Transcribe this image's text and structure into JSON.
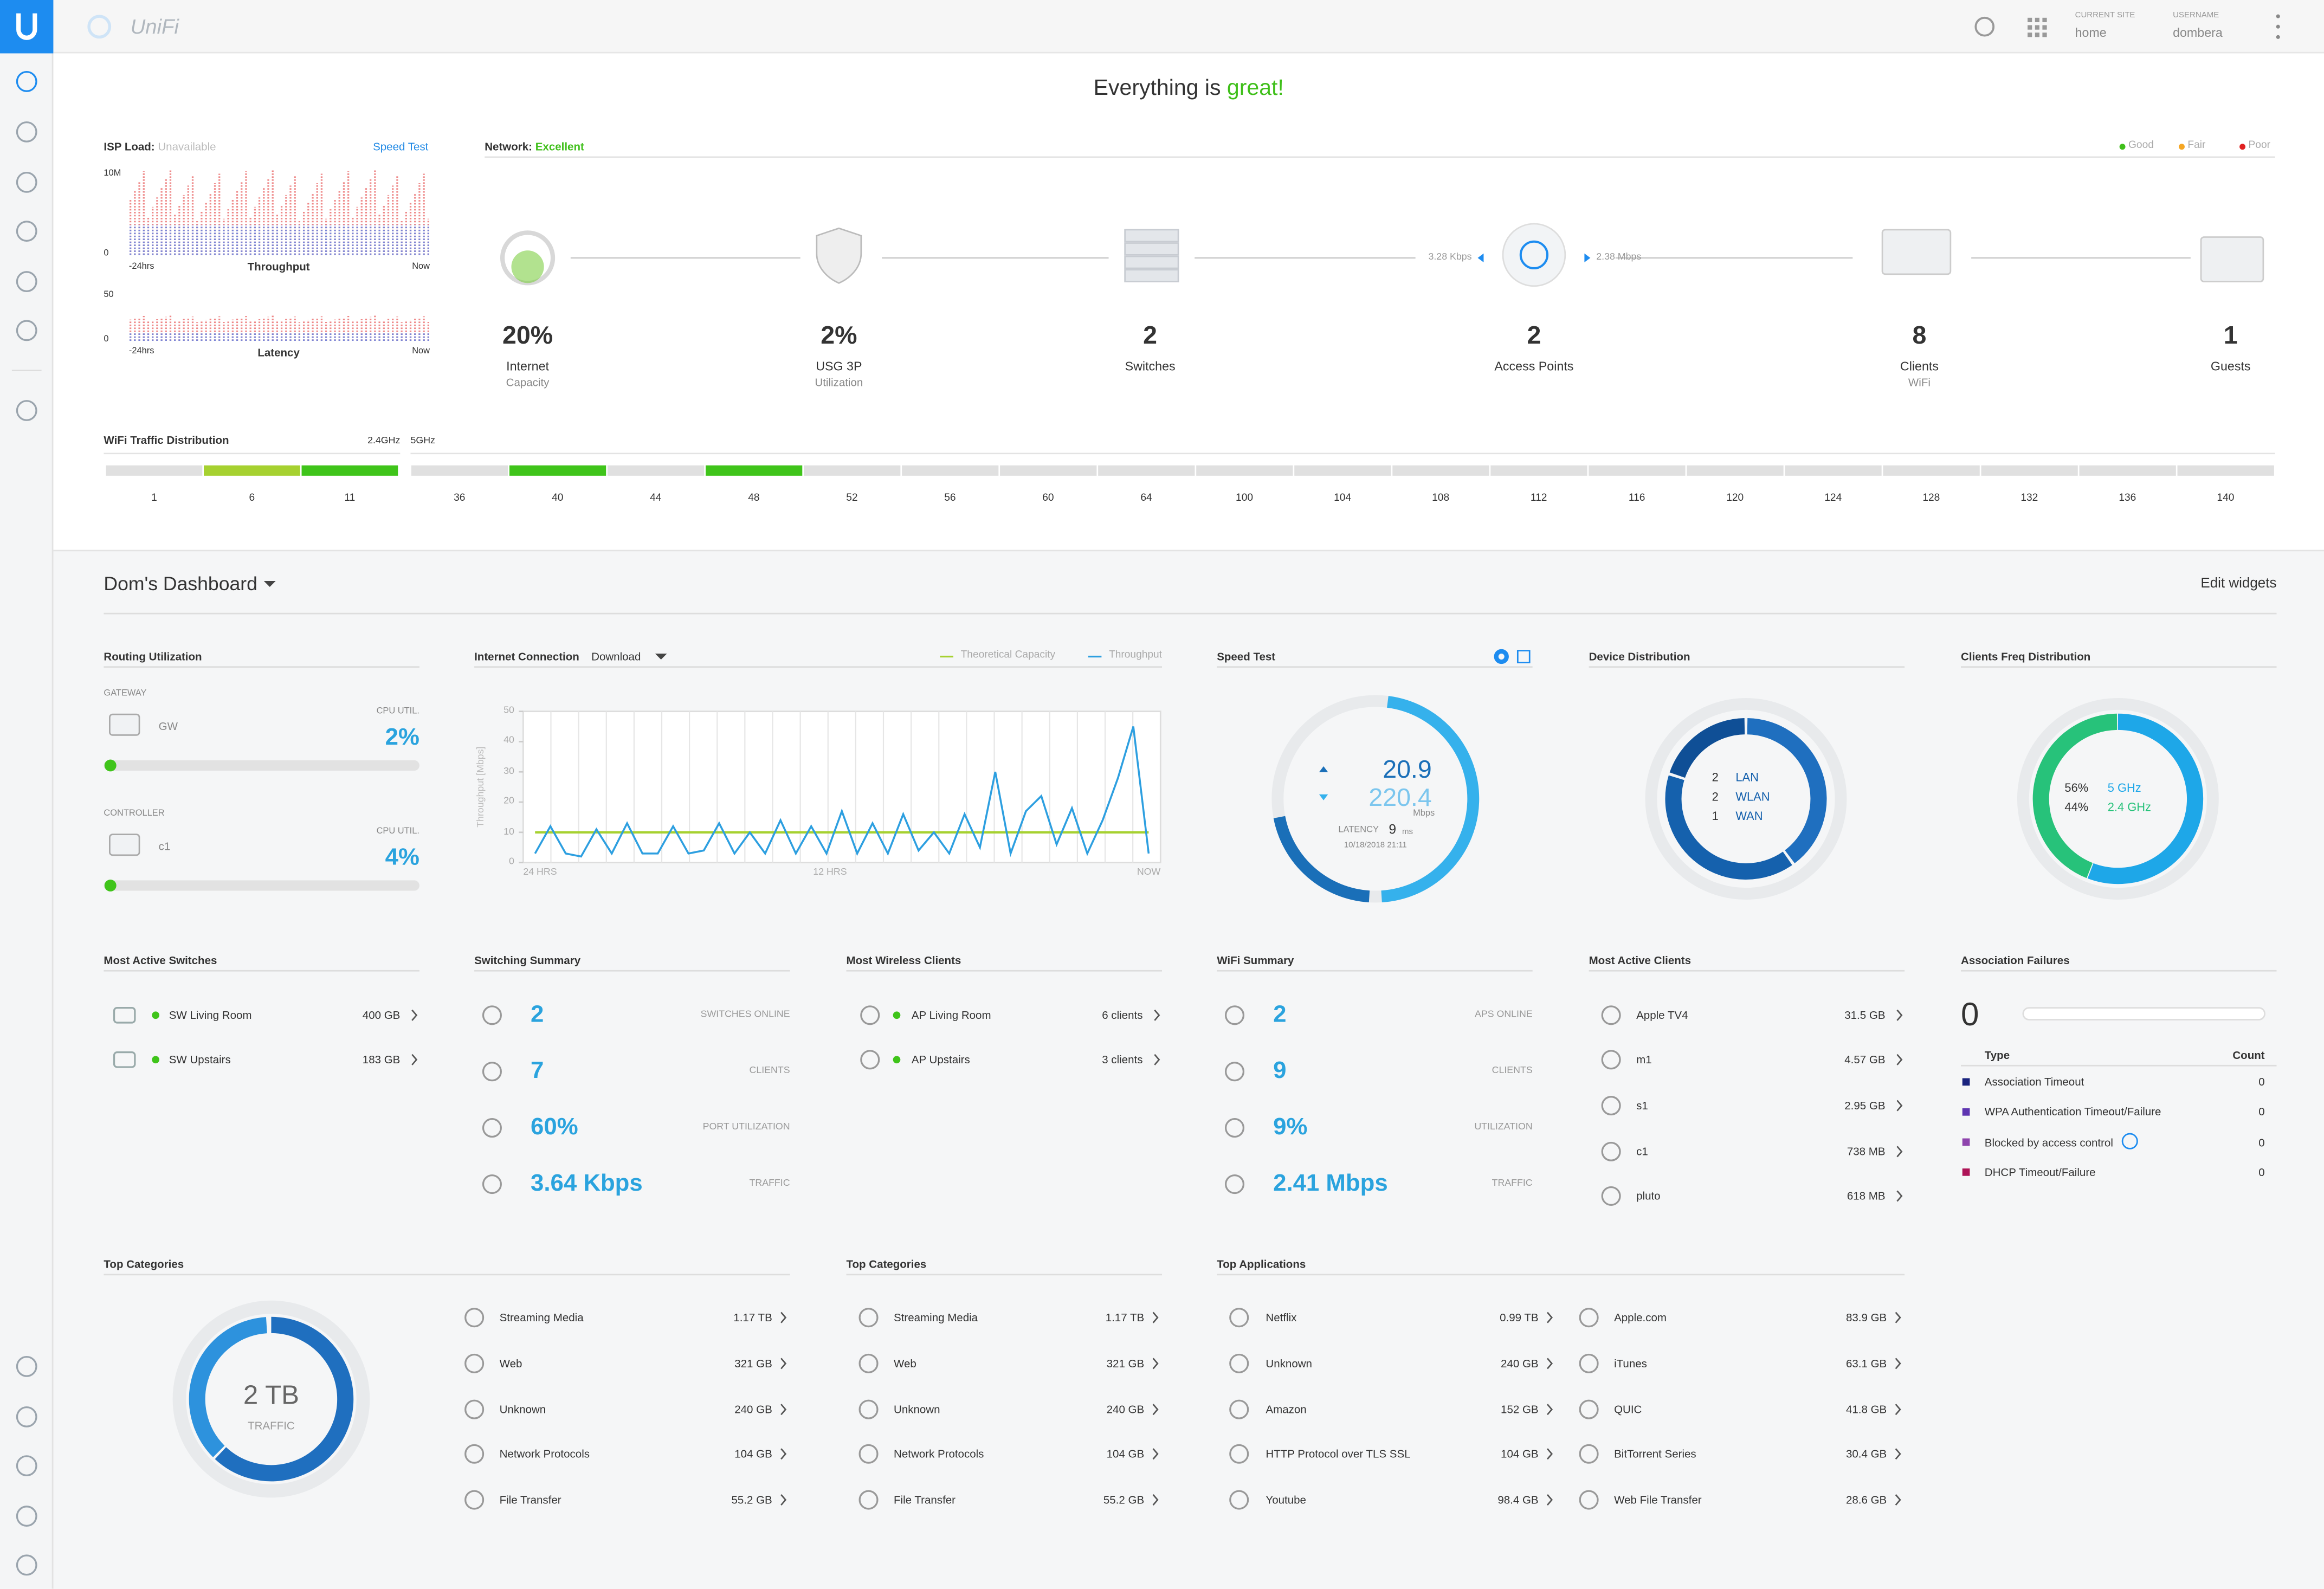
{
  "header": {
    "brand": "UniFi",
    "site_label": "CURRENT SITE",
    "site": "home",
    "user_label": "USERNAME",
    "user": "dombera"
  },
  "status": {
    "text": "Everything is",
    "highlight": "great!"
  },
  "isp": {
    "label": "ISP Load:",
    "state": "Unavailable",
    "link": "Speed Test",
    "throughput": {
      "title": "Throughput",
      "yticks": [
        "10M",
        "0"
      ],
      "start": "-24hrs",
      "end": "Now"
    },
    "latency": {
      "title": "Latency",
      "yticks": [
        "50",
        "0"
      ],
      "start": "-24hrs",
      "end": "Now"
    }
  },
  "network": {
    "label": "Network:",
    "state": "Excellent",
    "legend": [
      "Good",
      "Fair",
      "Poor"
    ],
    "uplink_rate": "3.28 Kbps",
    "downlink_rate": "2.38 Mbps",
    "stats": [
      {
        "value": "20%",
        "label": "Internet",
        "sub": "Capacity"
      },
      {
        "value": "2%",
        "label": "USG 3P",
        "sub": "Utilization"
      },
      {
        "value": "2",
        "label": "Switches"
      },
      {
        "value": "2",
        "label": "Access Points"
      },
      {
        "value": "8",
        "label": "Clients",
        "sub": "WiFi"
      },
      {
        "value": "1",
        "label": "Guests"
      }
    ]
  },
  "wifi_distribution": {
    "title": "WiFi Traffic Distribution",
    "band_24": "2.4GHz",
    "band_5": "5GHz",
    "channels_24": [
      "1",
      "6",
      "11"
    ],
    "channels_5": [
      "36",
      "40",
      "44",
      "48",
      "52",
      "56",
      "60",
      "64",
      "100",
      "104",
      "108",
      "112",
      "116",
      "120",
      "124",
      "128",
      "132",
      "136",
      "140"
    ]
  },
  "dashboard": {
    "title": "Dom's Dashboard",
    "edit": "Edit widgets"
  },
  "routing": {
    "title": "Routing Utilization",
    "items": [
      {
        "group": "GATEWAY",
        "name": "GW",
        "metric": "CPU UTIL.",
        "value": "2%"
      },
      {
        "group": "CONTROLLER",
        "name": "c1",
        "metric": "CPU UTIL.",
        "value": "4%"
      }
    ]
  },
  "internet_connection": {
    "title": "Internet Connection",
    "mode": "Download",
    "y_label": "Throughput [Mbps]",
    "ylim": [
      0,
      50
    ],
    "yticks": [
      0,
      10,
      20,
      30,
      40,
      50
    ],
    "x_labels": [
      "24 HRS",
      "12 HRS",
      "NOW"
    ],
    "series": [
      {
        "name": "Theoretical Capacity",
        "color": "#a6d130",
        "values": [
          10,
          10,
          10,
          10,
          10,
          10,
          10,
          10,
          10,
          10,
          10,
          10,
          10,
          10,
          10,
          10,
          10,
          10,
          10,
          10,
          10,
          10,
          10,
          10,
          10,
          10,
          10,
          10,
          10,
          10,
          10,
          10,
          10,
          10,
          10,
          10,
          10,
          10,
          10,
          10,
          10
        ]
      },
      {
        "name": "Throughput",
        "color": "#2d9fe0",
        "values": [
          3,
          12,
          3,
          2,
          11,
          3,
          13,
          3,
          3,
          12,
          3,
          4,
          13,
          3,
          10,
          3,
          14,
          3,
          12,
          3,
          17,
          3,
          13,
          3,
          16,
          4,
          10,
          3,
          16,
          5,
          30,
          3,
          17,
          22,
          6,
          18,
          3,
          14,
          28,
          45,
          3
        ]
      }
    ]
  },
  "speed_test": {
    "title": "Speed Test",
    "upload": "20.9",
    "download": "220.4",
    "unit": "Mbps",
    "latency_label": "LATENCY",
    "latency": "9",
    "latency_unit": "ms",
    "date": "10/18/2018 21:11"
  },
  "device_distribution": {
    "title": "Device Distribution",
    "items": [
      {
        "count": 2,
        "name": "LAN"
      },
      {
        "count": 2,
        "name": "WLAN"
      },
      {
        "count": 1,
        "name": "WAN"
      }
    ]
  },
  "clients_freq": {
    "title": "Clients Freq Distribution",
    "items": [
      {
        "share": "56%",
        "name": "5 GHz"
      },
      {
        "share": "44%",
        "name": "2.4 GHz"
      }
    ]
  },
  "most_active_switches": {
    "title": "Most Active Switches",
    "items": [
      {
        "name": "SW Living Room",
        "value": "400 GB"
      },
      {
        "name": "SW Upstairs",
        "value": "183 GB"
      }
    ]
  },
  "switching_summary": {
    "title": "Switching Summary",
    "items": [
      {
        "value": "2",
        "label": "SWITCHES ONLINE"
      },
      {
        "value": "7",
        "label": "CLIENTS"
      },
      {
        "value": "60%",
        "label": "PORT UTILIZATION"
      },
      {
        "value": "3.64 Kbps",
        "label": "TRAFFIC"
      }
    ]
  },
  "most_wireless_clients": {
    "title": "Most Wireless Clients",
    "items": [
      {
        "name": "AP Living Room",
        "value": "6 clients"
      },
      {
        "name": "AP Upstairs",
        "value": "3 clients"
      }
    ]
  },
  "wifi_summary": {
    "title": "WiFi Summary",
    "items": [
      {
        "value": "2",
        "label": "APS ONLINE"
      },
      {
        "value": "9",
        "label": "CLIENTS"
      },
      {
        "value": "9%",
        "label": "UTILIZATION"
      },
      {
        "value": "2.41 Mbps",
        "label": "TRAFFIC"
      }
    ]
  },
  "most_active_clients": {
    "title": "Most Active Clients",
    "items": [
      {
        "name": "Apple TV4",
        "value": "31.5 GB"
      },
      {
        "name": "m1",
        "value": "4.57 GB"
      },
      {
        "name": "s1",
        "value": "2.95 GB"
      },
      {
        "name": "c1",
        "value": "738 MB"
      },
      {
        "name": "pluto",
        "value": "618 MB"
      }
    ]
  },
  "association_failures": {
    "title": "Association Failures",
    "total": "0",
    "columns": [
      "Type",
      "Count"
    ],
    "rows": [
      [
        "Association Timeout",
        "0"
      ],
      [
        "WPA Authentication Timeout/Failure",
        "0"
      ],
      [
        "Blocked by access control",
        "0"
      ],
      [
        "DHCP Timeout/Failure",
        "0"
      ]
    ]
  },
  "top_categories": [
    {
      "title": "Top Categories",
      "total": "2 TB",
      "total_label": "TRAFFIC",
      "items": [
        {
          "name": "Streaming Media",
          "value": "1.17 TB"
        },
        {
          "name": "Web",
          "value": "321 GB"
        },
        {
          "name": "Unknown",
          "value": "240 GB"
        },
        {
          "name": "Network Protocols",
          "value": "104 GB"
        },
        {
          "name": "File Transfer",
          "value": "55.2 GB"
        }
      ]
    },
    {
      "title": "Top Categories",
      "items": [
        {
          "name": "Streaming Media",
          "value": "1.17 TB"
        },
        {
          "name": "Web",
          "value": "321 GB"
        },
        {
          "name": "Unknown",
          "value": "240 GB"
        },
        {
          "name": "Network Protocols",
          "value": "104 GB"
        },
        {
          "name": "File Transfer",
          "value": "55.2 GB"
        }
      ]
    }
  ],
  "top_applications": {
    "title": "Top Applications",
    "items": [
      {
        "name": "Netflix",
        "value": "0.99 TB"
      },
      {
        "name": "Unknown",
        "value": "240 GB"
      },
      {
        "name": "Amazon",
        "value": "152 GB"
      },
      {
        "name": "HTTP Protocol over TLS SSL",
        "value": "104 GB"
      },
      {
        "name": "Youtube",
        "value": "98.4 GB"
      },
      {
        "name": "Apple.com",
        "value": "83.9 GB"
      },
      {
        "name": "iTunes",
        "value": "63.1 GB"
      },
      {
        "name": "QUIC",
        "value": "41.8 GB"
      },
      {
        "name": "BitTorrent Series",
        "value": "30.4 GB"
      },
      {
        "name": "Web File Transfer",
        "value": "28.6 GB"
      }
    ]
  }
}
